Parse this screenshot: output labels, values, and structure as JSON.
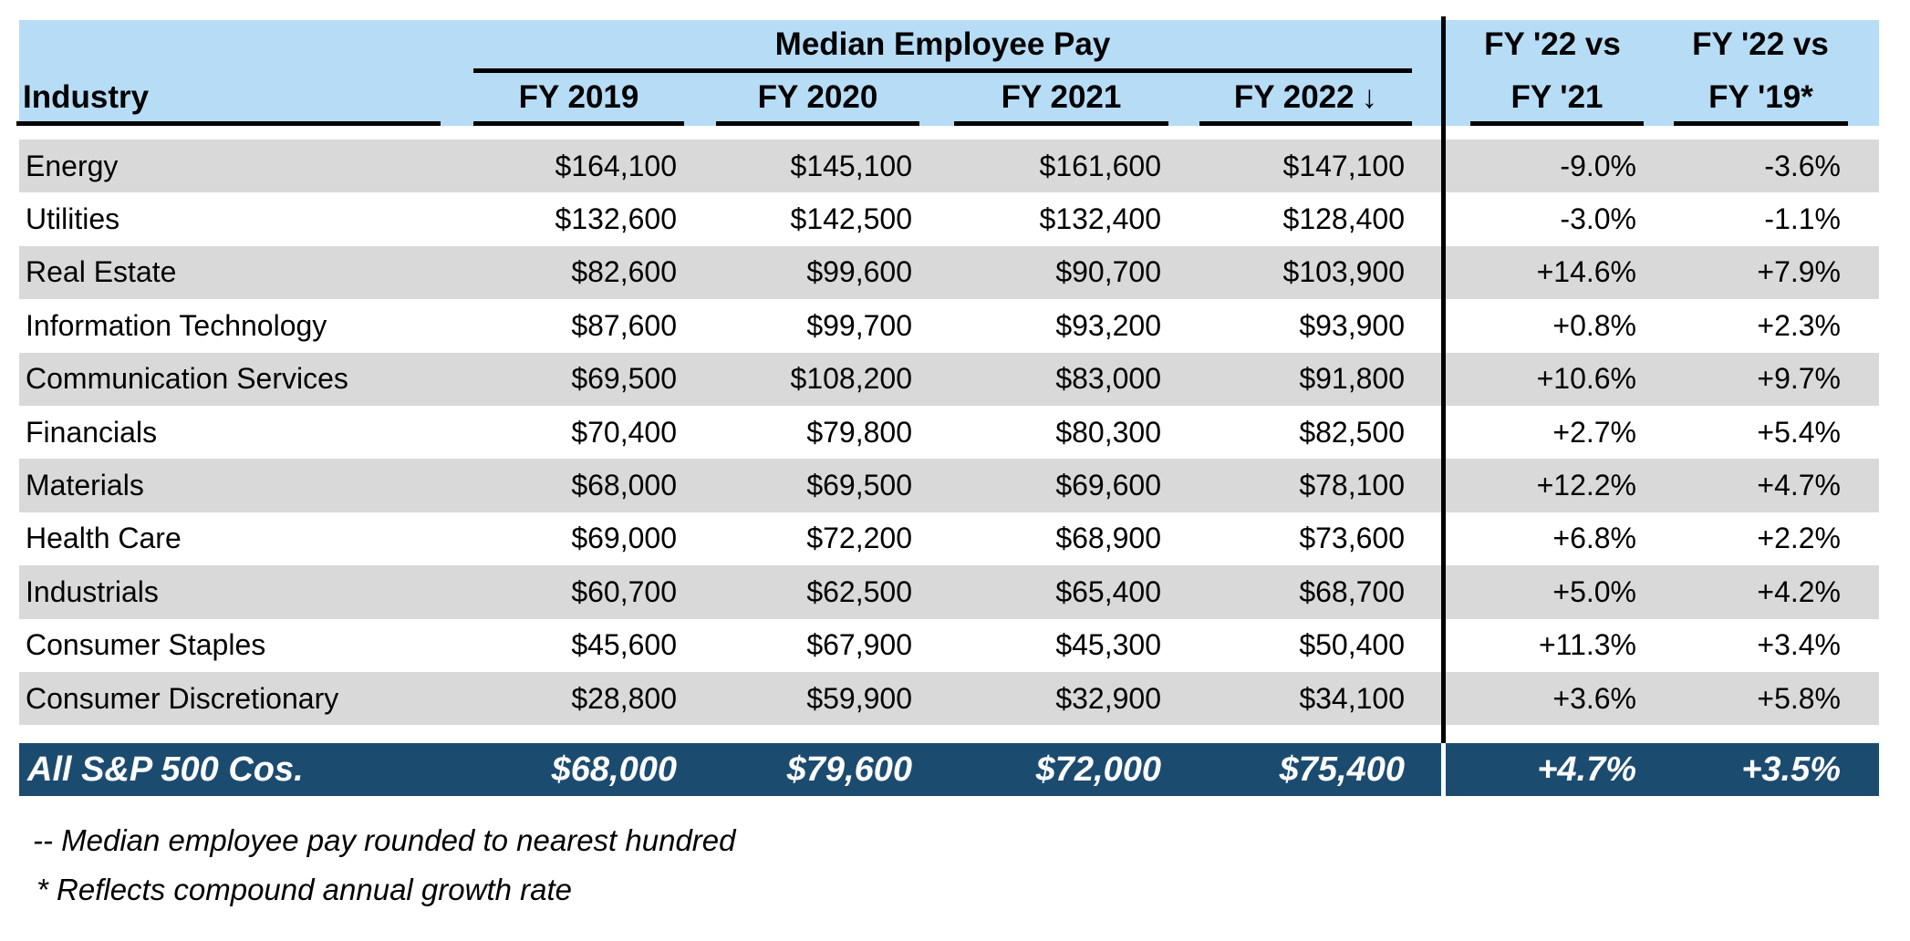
{
  "table": {
    "industry_header": "Industry",
    "pay_group_header": "Median Employee Pay",
    "year_headers": [
      "FY 2019",
      "FY 2020",
      "FY 2021",
      "FY 2022"
    ],
    "sort_arrow": "↓",
    "compare_headers": [
      {
        "line1": "FY '22 vs",
        "line2": "FY '21"
      },
      {
        "line1": "FY '22 vs",
        "line2": "FY '19*"
      }
    ],
    "rows": [
      {
        "industry": "Energy",
        "values": [
          "$164,100",
          "$145,100",
          "$161,600",
          "$147,100",
          "-9.0%",
          "-3.6%"
        ]
      },
      {
        "industry": "Utilities",
        "values": [
          "$132,600",
          "$142,500",
          "$132,400",
          "$128,400",
          "-3.0%",
          "-1.1%"
        ]
      },
      {
        "industry": "Real Estate",
        "values": [
          "$82,600",
          "$99,600",
          "$90,700",
          "$103,900",
          "+14.6%",
          "+7.9%"
        ]
      },
      {
        "industry": "Information Technology",
        "values": [
          "$87,600",
          "$99,700",
          "$93,200",
          "$93,900",
          "+0.8%",
          "+2.3%"
        ]
      },
      {
        "industry": "Communication Services",
        "values": [
          "$69,500",
          "$108,200",
          "$83,000",
          "$91,800",
          "+10.6%",
          "+9.7%"
        ]
      },
      {
        "industry": "Financials",
        "values": [
          "$70,400",
          "$79,800",
          "$80,300",
          "$82,500",
          "+2.7%",
          "+5.4%"
        ]
      },
      {
        "industry": "Materials",
        "values": [
          "$68,000",
          "$69,500",
          "$69,600",
          "$78,100",
          "+12.2%",
          "+4.7%"
        ]
      },
      {
        "industry": "Health Care",
        "values": [
          "$69,000",
          "$72,200",
          "$68,900",
          "$73,600",
          "+6.8%",
          "+2.2%"
        ]
      },
      {
        "industry": "Industrials",
        "values": [
          "$60,700",
          "$62,500",
          "$65,400",
          "$68,700",
          "+5.0%",
          "+4.2%"
        ]
      },
      {
        "industry": "Consumer Staples",
        "values": [
          "$45,600",
          "$67,900",
          "$45,300",
          "$50,400",
          "+11.3%",
          "+3.4%"
        ]
      },
      {
        "industry": "Consumer Discretionary",
        "values": [
          "$28,800",
          "$59,900",
          "$32,900",
          "$34,100",
          "+3.6%",
          "+5.8%"
        ]
      }
    ],
    "summary_row": {
      "industry": "All S&P 500 Cos.",
      "values": [
        "$68,000",
        "$79,600",
        "$72,000",
        "$75,400",
        "+4.7%",
        "+3.5%"
      ]
    },
    "footnotes": [
      "-- Median employee pay rounded to nearest hundred",
      "* Reflects compound annual growth rate"
    ]
  },
  "colors": {
    "header_bg": "#B7DCF6",
    "stripe_bg": "#D9D9D9",
    "summary_bg": "#1C4B70",
    "divider": "#000000",
    "summary_text": "#FFFFFF"
  },
  "chart_data": {
    "type": "table",
    "title": "Median Employee Pay",
    "columns": [
      "Industry",
      "FY 2019",
      "FY 2020",
      "FY 2021",
      "FY 2022",
      "FY '22 vs FY '21",
      "FY '22 vs FY '19*"
    ],
    "sorted_by": "FY 2022 descending",
    "rows": [
      [
        "Energy",
        164100,
        145100,
        161600,
        147100,
        "-9.0%",
        "-3.6%"
      ],
      [
        "Utilities",
        132600,
        142500,
        132400,
        128400,
        "-3.0%",
        "-1.1%"
      ],
      [
        "Real Estate",
        82600,
        99600,
        90700,
        103900,
        "+14.6%",
        "+7.9%"
      ],
      [
        "Information Technology",
        87600,
        99700,
        93200,
        93900,
        "+0.8%",
        "+2.3%"
      ],
      [
        "Communication Services",
        69500,
        108200,
        83000,
        91800,
        "+10.6%",
        "+9.7%"
      ],
      [
        "Financials",
        70400,
        79800,
        80300,
        82500,
        "+2.7%",
        "+5.4%"
      ],
      [
        "Materials",
        68000,
        69500,
        69600,
        78100,
        "+12.2%",
        "+4.7%"
      ],
      [
        "Health Care",
        69000,
        72200,
        68900,
        73600,
        "+6.8%",
        "+2.2%"
      ],
      [
        "Industrials",
        60700,
        62500,
        65400,
        68700,
        "+5.0%",
        "+4.2%"
      ],
      [
        "Consumer Staples",
        45600,
        67900,
        45300,
        50400,
        "+11.3%",
        "+3.4%"
      ],
      [
        "Consumer Discretionary",
        28800,
        59900,
        32900,
        34100,
        "+3.6%",
        "+5.8%"
      ],
      [
        "All S&P 500 Cos.",
        68000,
        79600,
        72000,
        75400,
        "+4.7%",
        "+3.5%"
      ]
    ],
    "footnotes": [
      "-- Median employee pay rounded to nearest hundred",
      "* Reflects compound annual growth rate"
    ]
  }
}
